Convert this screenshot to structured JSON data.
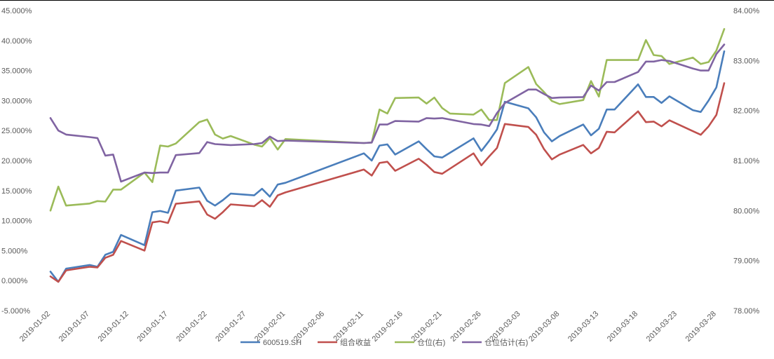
{
  "chart_data": {
    "type": "line",
    "title": "",
    "x_ticks": [
      "2019-01-02",
      "2019-01-07",
      "2019-01-12",
      "2019-01-17",
      "2019-01-22",
      "2019-01-27",
      "2019-02-01",
      "2019-02-06",
      "2019-02-11",
      "2019-02-16",
      "2019-02-21",
      "2019-02-26",
      "2019-03-03",
      "2019-03-08",
      "2019-03-13",
      "2019-03-18",
      "2019-03-23",
      "2019-03-28"
    ],
    "y_left": {
      "ticks": [
        "-5.000%",
        "0.000%",
        "5.000%",
        "10.000%",
        "15.000%",
        "20.000%",
        "25.000%",
        "30.000%",
        "35.000%",
        "40.000%",
        "45.000%"
      ],
      "min": -5,
      "max": 45,
      "step": 5
    },
    "y_right": {
      "ticks": [
        "78.00%",
        "79.00%",
        "80.00%",
        "81.00%",
        "82.00%",
        "83.00%",
        "84.00%"
      ],
      "min": 78,
      "max": 84,
      "step": 1
    },
    "legend_position": "bottom",
    "series": [
      {
        "name": "600519.SH",
        "axis": "left",
        "color": "#4a7ebb",
        "points": [
          [
            "2019-01-02",
            1.5
          ],
          [
            "2019-01-03",
            -0.2
          ],
          [
            "2019-01-04",
            2.0
          ],
          [
            "2019-01-07",
            2.6
          ],
          [
            "2019-01-08",
            2.3
          ],
          [
            "2019-01-09",
            4.3
          ],
          [
            "2019-01-10",
            4.8
          ],
          [
            "2019-01-11",
            7.6
          ],
          [
            "2019-01-14",
            5.9
          ],
          [
            "2019-01-15",
            11.4
          ],
          [
            "2019-01-16",
            11.6
          ],
          [
            "2019-01-17",
            11.3
          ],
          [
            "2019-01-18",
            15.0
          ],
          [
            "2019-01-21",
            15.5
          ],
          [
            "2019-01-22",
            13.3
          ],
          [
            "2019-01-23",
            12.5
          ],
          [
            "2019-01-24",
            13.4
          ],
          [
            "2019-01-25",
            14.5
          ],
          [
            "2019-01-28",
            14.2
          ],
          [
            "2019-01-29",
            15.3
          ],
          [
            "2019-01-30",
            14.0
          ],
          [
            "2019-01-31",
            16.0
          ],
          [
            "2019-02-01",
            16.3
          ],
          [
            "2019-02-11",
            21.2
          ],
          [
            "2019-02-12",
            20.0
          ],
          [
            "2019-02-13",
            22.5
          ],
          [
            "2019-02-14",
            22.7
          ],
          [
            "2019-02-15",
            21.0
          ],
          [
            "2019-02-18",
            23.2
          ],
          [
            "2019-02-19",
            21.9
          ],
          [
            "2019-02-20",
            20.7
          ],
          [
            "2019-02-21",
            20.5
          ],
          [
            "2019-02-25",
            23.7
          ],
          [
            "2019-02-26",
            21.6
          ],
          [
            "2019-02-27",
            23.3
          ],
          [
            "2019-02-28",
            25.2
          ],
          [
            "2019-03-01",
            29.8
          ],
          [
            "2019-03-04",
            28.7
          ],
          [
            "2019-03-05",
            27.2
          ],
          [
            "2019-03-06",
            24.7
          ],
          [
            "2019-03-07",
            23.2
          ],
          [
            "2019-03-08",
            24.1
          ],
          [
            "2019-03-11",
            26.0
          ],
          [
            "2019-03-12",
            24.2
          ],
          [
            "2019-03-13",
            25.3
          ],
          [
            "2019-03-14",
            28.5
          ],
          [
            "2019-03-15",
            28.5
          ],
          [
            "2019-03-18",
            32.7
          ],
          [
            "2019-03-19",
            30.6
          ],
          [
            "2019-03-20",
            30.6
          ],
          [
            "2019-03-21",
            29.6
          ],
          [
            "2019-03-22",
            30.7
          ],
          [
            "2019-03-25",
            28.4
          ],
          [
            "2019-03-26",
            28.1
          ],
          [
            "2019-03-27",
            30.0
          ],
          [
            "2019-03-28",
            32.2
          ],
          [
            "2019-03-29",
            38.2
          ]
        ]
      },
      {
        "name": "组合收益",
        "axis": "left",
        "color": "#c0504d",
        "points": [
          [
            "2019-01-02",
            0.7
          ],
          [
            "2019-01-03",
            -0.2
          ],
          [
            "2019-01-04",
            1.7
          ],
          [
            "2019-01-07",
            2.3
          ],
          [
            "2019-01-08",
            2.2
          ],
          [
            "2019-01-09",
            3.8
          ],
          [
            "2019-01-10",
            4.3
          ],
          [
            "2019-01-11",
            6.6
          ],
          [
            "2019-01-14",
            5.0
          ],
          [
            "2019-01-15",
            9.7
          ],
          [
            "2019-01-16",
            9.9
          ],
          [
            "2019-01-17",
            9.6
          ],
          [
            "2019-01-18",
            12.8
          ],
          [
            "2019-01-21",
            13.2
          ],
          [
            "2019-01-22",
            11.0
          ],
          [
            "2019-01-23",
            10.3
          ],
          [
            "2019-01-24",
            11.4
          ],
          [
            "2019-01-25",
            12.7
          ],
          [
            "2019-01-28",
            12.4
          ],
          [
            "2019-01-29",
            13.4
          ],
          [
            "2019-01-30",
            12.3
          ],
          [
            "2019-01-31",
            14.2
          ],
          [
            "2019-02-01",
            14.7
          ],
          [
            "2019-02-11",
            18.5
          ],
          [
            "2019-02-12",
            17.5
          ],
          [
            "2019-02-13",
            19.6
          ],
          [
            "2019-02-14",
            19.8
          ],
          [
            "2019-02-15",
            18.3
          ],
          [
            "2019-02-18",
            20.3
          ],
          [
            "2019-02-19",
            19.3
          ],
          [
            "2019-02-20",
            18.1
          ],
          [
            "2019-02-21",
            17.8
          ],
          [
            "2019-02-25",
            21.2
          ],
          [
            "2019-02-26",
            19.2
          ],
          [
            "2019-02-27",
            20.7
          ],
          [
            "2019-02-28",
            22.1
          ],
          [
            "2019-03-01",
            26.1
          ],
          [
            "2019-03-04",
            25.6
          ],
          [
            "2019-03-05",
            24.3
          ],
          [
            "2019-03-06",
            21.9
          ],
          [
            "2019-03-07",
            20.2
          ],
          [
            "2019-03-08",
            21.0
          ],
          [
            "2019-03-11",
            22.6
          ],
          [
            "2019-03-12",
            21.2
          ],
          [
            "2019-03-13",
            22.1
          ],
          [
            "2019-03-14",
            24.8
          ],
          [
            "2019-03-15",
            24.7
          ],
          [
            "2019-03-18",
            28.2
          ],
          [
            "2019-03-19",
            26.4
          ],
          [
            "2019-03-20",
            26.5
          ],
          [
            "2019-03-21",
            25.7
          ],
          [
            "2019-03-22",
            26.7
          ],
          [
            "2019-03-25",
            24.9
          ],
          [
            "2019-03-26",
            24.3
          ],
          [
            "2019-03-27",
            25.7
          ],
          [
            "2019-03-28",
            27.6
          ],
          [
            "2019-03-29",
            32.9
          ]
        ]
      },
      {
        "name": "仓位(右)",
        "axis": "right",
        "color": "#9bbb59",
        "points": [
          [
            "2019-01-02",
            80.0
          ],
          [
            "2019-01-03",
            80.48
          ],
          [
            "2019-01-04",
            80.1
          ],
          [
            "2019-01-07",
            80.14
          ],
          [
            "2019-01-08",
            80.19
          ],
          [
            "2019-01-09",
            80.18
          ],
          [
            "2019-01-10",
            80.42
          ],
          [
            "2019-01-11",
            80.42
          ],
          [
            "2019-01-14",
            80.76
          ],
          [
            "2019-01-15",
            80.57
          ],
          [
            "2019-01-16",
            81.3
          ],
          [
            "2019-01-17",
            81.28
          ],
          [
            "2019-01-18",
            81.34
          ],
          [
            "2019-01-21",
            81.77
          ],
          [
            "2019-01-22",
            81.82
          ],
          [
            "2019-01-23",
            81.52
          ],
          [
            "2019-01-24",
            81.44
          ],
          [
            "2019-01-25",
            81.49
          ],
          [
            "2019-01-28",
            81.32
          ],
          [
            "2019-01-29",
            81.28
          ],
          [
            "2019-01-30",
            81.45
          ],
          [
            "2019-01-31",
            81.22
          ],
          [
            "2019-02-01",
            81.43
          ],
          [
            "2019-02-11",
            81.35
          ],
          [
            "2019-02-12",
            81.36
          ],
          [
            "2019-02-13",
            82.02
          ],
          [
            "2019-02-14",
            81.94
          ],
          [
            "2019-02-15",
            82.25
          ],
          [
            "2019-02-18",
            82.26
          ],
          [
            "2019-02-19",
            82.14
          ],
          [
            "2019-02-20",
            82.26
          ],
          [
            "2019-02-21",
            82.05
          ],
          [
            "2019-02-22",
            81.94
          ],
          [
            "2019-02-25",
            81.92
          ],
          [
            "2019-02-26",
            82.02
          ],
          [
            "2019-02-27",
            81.81
          ],
          [
            "2019-02-28",
            81.81
          ],
          [
            "2019-03-01",
            82.55
          ],
          [
            "2019-03-04",
            82.87
          ],
          [
            "2019-03-05",
            82.53
          ],
          [
            "2019-03-06",
            82.37
          ],
          [
            "2019-03-07",
            82.19
          ],
          [
            "2019-03-08",
            82.13
          ],
          [
            "2019-03-11",
            82.21
          ],
          [
            "2019-03-12",
            82.59
          ],
          [
            "2019-03-13",
            82.28
          ],
          [
            "2019-03-14",
            83.01
          ],
          [
            "2019-03-15",
            83.01
          ],
          [
            "2019-03-18",
            83.01
          ],
          [
            "2019-03-19",
            83.41
          ],
          [
            "2019-03-20",
            83.11
          ],
          [
            "2019-03-21",
            83.09
          ],
          [
            "2019-03-22",
            82.93
          ],
          [
            "2019-03-25",
            83.06
          ],
          [
            "2019-03-26",
            82.93
          ],
          [
            "2019-03-27",
            82.97
          ],
          [
            "2019-03-28",
            83.2
          ],
          [
            "2019-03-29",
            83.63
          ]
        ]
      },
      {
        "name": "仓位估计(右)",
        "axis": "right",
        "color": "#8064a2",
        "points": [
          [
            "2019-01-02",
            81.85
          ],
          [
            "2019-01-03",
            81.6
          ],
          [
            "2019-01-04",
            81.52
          ],
          [
            "2019-01-07",
            81.47
          ],
          [
            "2019-01-08",
            81.45
          ],
          [
            "2019-01-09",
            81.1
          ],
          [
            "2019-01-10",
            81.12
          ],
          [
            "2019-01-11",
            80.58
          ],
          [
            "2019-01-14",
            80.76
          ],
          [
            "2019-01-15",
            80.75
          ],
          [
            "2019-01-16",
            80.76
          ],
          [
            "2019-01-17",
            80.76
          ],
          [
            "2019-01-18",
            81.11
          ],
          [
            "2019-01-21",
            81.15
          ],
          [
            "2019-01-22",
            81.37
          ],
          [
            "2019-01-23",
            81.33
          ],
          [
            "2019-01-24",
            81.32
          ],
          [
            "2019-01-25",
            81.31
          ],
          [
            "2019-01-28",
            81.33
          ],
          [
            "2019-01-29",
            81.35
          ],
          [
            "2019-01-30",
            81.48
          ],
          [
            "2019-01-31",
            81.39
          ],
          [
            "2019-02-01",
            81.4
          ],
          [
            "2019-02-11",
            81.35
          ],
          [
            "2019-02-12",
            81.36
          ],
          [
            "2019-02-13",
            81.72
          ],
          [
            "2019-02-14",
            81.72
          ],
          [
            "2019-02-15",
            81.79
          ],
          [
            "2019-02-18",
            81.78
          ],
          [
            "2019-02-19",
            81.85
          ],
          [
            "2019-02-20",
            81.84
          ],
          [
            "2019-02-21",
            81.85
          ],
          [
            "2019-02-22",
            81.82
          ],
          [
            "2019-02-25",
            81.73
          ],
          [
            "2019-02-26",
            81.72
          ],
          [
            "2019-02-27",
            81.69
          ],
          [
            "2019-02-28",
            81.95
          ],
          [
            "2019-03-01",
            82.15
          ],
          [
            "2019-03-04",
            82.42
          ],
          [
            "2019-03-05",
            82.42
          ],
          [
            "2019-03-06",
            82.33
          ],
          [
            "2019-03-07",
            82.25
          ],
          [
            "2019-03-08",
            82.26
          ],
          [
            "2019-03-11",
            82.27
          ],
          [
            "2019-03-12",
            82.5
          ],
          [
            "2019-03-13",
            82.4
          ],
          [
            "2019-03-14",
            82.57
          ],
          [
            "2019-03-15",
            82.57
          ],
          [
            "2019-03-18",
            82.77
          ],
          [
            "2019-03-19",
            82.98
          ],
          [
            "2019-03-20",
            82.98
          ],
          [
            "2019-03-21",
            83.01
          ],
          [
            "2019-03-22",
            82.99
          ],
          [
            "2019-03-25",
            82.84
          ],
          [
            "2019-03-26",
            82.8
          ],
          [
            "2019-03-27",
            82.8
          ],
          [
            "2019-03-28",
            83.13
          ],
          [
            "2019-03-29",
            83.32
          ]
        ]
      }
    ]
  }
}
